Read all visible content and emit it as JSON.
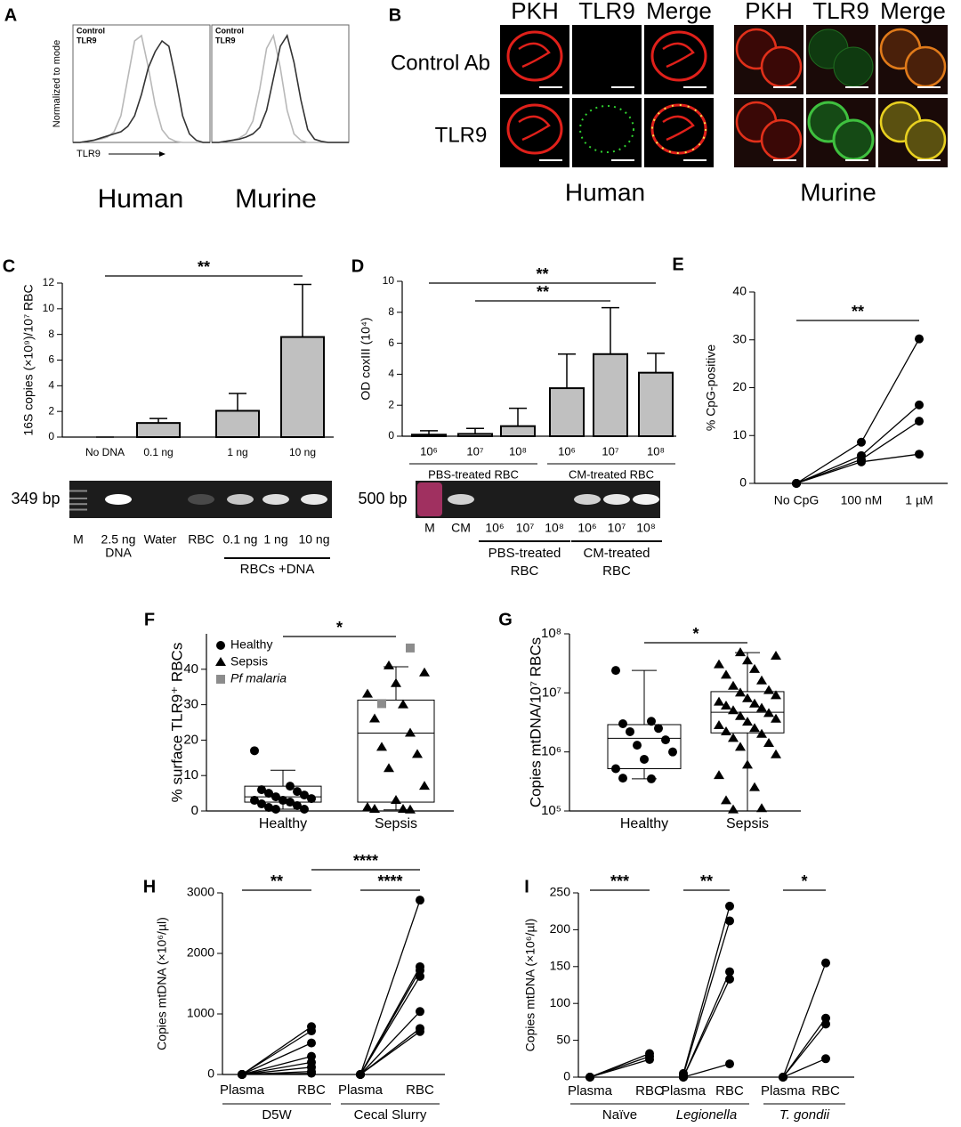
{
  "chart_data": [
    {
      "type": "line",
      "label": "A",
      "title": "Human",
      "ylabel": "Normalized to mode",
      "xlabel": "TLR9",
      "x": [
        0,
        1,
        2,
        3,
        4,
        5,
        6,
        7,
        8,
        9,
        10,
        11,
        12,
        13,
        14,
        15,
        16,
        17,
        18,
        19,
        20
      ],
      "xlim": [
        0,
        20
      ],
      "ylim": [
        0,
        110
      ],
      "series": [
        {
          "name": "Control",
          "color": "#b8b8b8",
          "values": [
            0,
            0,
            1,
            2,
            3,
            5,
            10,
            25,
            60,
            95,
            100,
            70,
            35,
            12,
            4,
            1,
            0,
            0,
            0,
            0,
            0
          ]
        },
        {
          "name": "TLR9",
          "color": "#333333",
          "values": [
            0,
            0,
            1,
            2,
            4,
            6,
            8,
            10,
            15,
            25,
            45,
            70,
            85,
            95,
            90,
            60,
            25,
            8,
            2,
            0,
            0
          ]
        }
      ]
    },
    {
      "type": "line",
      "title": "Murine",
      "x": [
        0,
        1,
        2,
        3,
        4,
        5,
        6,
        7,
        8,
        9,
        10,
        11,
        12,
        13,
        14,
        15,
        16,
        17,
        18,
        19,
        20
      ],
      "xlim": [
        0,
        20
      ],
      "ylim": [
        0,
        110
      ],
      "series": [
        {
          "name": "Control",
          "color": "#b8b8b8",
          "values": [
            0,
            0,
            1,
            2,
            4,
            8,
            20,
            50,
            88,
            100,
            70,
            30,
            8,
            2,
            0,
            0,
            0,
            0,
            0,
            0,
            0
          ]
        },
        {
          "name": "TLR9",
          "color": "#333333",
          "values": [
            0,
            0,
            1,
            2,
            3,
            5,
            8,
            14,
            30,
            60,
            90,
            100,
            75,
            40,
            12,
            3,
            1,
            0,
            0,
            0,
            0
          ]
        }
      ]
    },
    {
      "type": "image",
      "label": "B",
      "columns": [
        "PKH",
        "TLR9",
        "Merge"
      ],
      "rows": [
        "Control Ab",
        "TLR9"
      ],
      "titles": [
        "Human",
        "Murine"
      ]
    },
    {
      "type": "bar",
      "label": "C",
      "ylabel": "16S copies (×10⁹)/10⁷ RBC",
      "categories": [
        "No DNA",
        "0.1 ng",
        "1 ng",
        "10 ng"
      ],
      "values": [
        0,
        1.1,
        2.05,
        7.8
      ],
      "errors": [
        0,
        0.35,
        1.35,
        4.1
      ],
      "color": "#c0c0c0",
      "ylim": [
        0,
        12
      ],
      "yticks": [
        0,
        2,
        4,
        6,
        8,
        10,
        12
      ],
      "annotations": [
        {
          "text": "**",
          "from": 0,
          "to": 3
        }
      ]
    },
    {
      "type": "gel",
      "marker_label": "349 bp",
      "lanes": [
        "M",
        [
          "2.5 ng",
          "DNA"
        ],
        "Water",
        "RBC",
        "0.1 ng",
        "1 ng",
        "10 ng"
      ],
      "groups": [
        [
          "RBCs +DNA"
        ]
      ]
    },
    {
      "type": "bar",
      "label": "D",
      "ylabel": "OD coxIII (10⁴)",
      "categories": [
        "10⁶",
        "10⁷",
        "10⁸",
        "10⁶",
        "10⁷",
        "10⁸"
      ],
      "groups": [
        {
          "label": "PBS-treated RBC"
        },
        {
          "label": "CM-treated RBC"
        }
      ],
      "values": [
        0.1,
        0.15,
        0.65,
        3.1,
        5.3,
        4.1
      ],
      "errors": [
        0.25,
        0.35,
        1.15,
        2.2,
        3.0,
        1.25
      ],
      "color": "#c0c0c0",
      "ylim": [
        0,
        10
      ],
      "yticks": [
        0,
        2,
        4,
        6,
        8,
        10
      ],
      "annotations": [
        {
          "text": "**",
          "from": 0,
          "to": 5
        },
        {
          "text": "**",
          "from": 1,
          "to": 4
        }
      ]
    },
    {
      "type": "gel",
      "marker_label": "500 bp",
      "lanes": [
        "M",
        "CM",
        "10⁶",
        "10⁷",
        "10⁸",
        "10⁶",
        "10⁷",
        "10⁸"
      ],
      "groups": [
        [
          "PBS-treated",
          "RBC"
        ],
        [
          "CM-treated",
          "RBC"
        ]
      ]
    },
    {
      "type": "paired",
      "label": "E",
      "ylabel": "% CpG-positive",
      "categories": [
        "No CpG",
        "100 nM",
        "1 µM"
      ],
      "ylim": [
        0,
        40
      ],
      "yticks": [
        0,
        10,
        20,
        30,
        40
      ],
      "series": [
        {
          "values": [
            0,
            8.6,
            30.2
          ]
        },
        {
          "values": [
            0,
            5.8,
            16.4
          ]
        },
        {
          "values": [
            0,
            5.0,
            13.0
          ]
        },
        {
          "values": [
            0,
            4.5,
            6.1
          ]
        }
      ],
      "annotations": [
        {
          "text": "**",
          "from": 0,
          "to": 2
        }
      ]
    },
    {
      "type": "box",
      "label": "F",
      "ylabel": "% surface TLR9⁺ RBCs",
      "categories": [
        "Healthy",
        "Sepsis"
      ],
      "ylim": [
        0,
        50
      ],
      "yticks": [
        0,
        10,
        20,
        30,
        40
      ],
      "legend": "top-left",
      "boxes": [
        {
          "min": 0.5,
          "q1": 2.5,
          "median": 4,
          "q3": 7,
          "max": 11.5
        },
        {
          "min": 0.3,
          "q1": 2.5,
          "median": 22,
          "q3": 31.3,
          "max": 40.7
        }
      ],
      "series": [
        {
          "name": "Healthy",
          "marker": "circle",
          "category": 0,
          "color": "#000000",
          "values": [
            17,
            7,
            6,
            5.5,
            5,
            4.5,
            4,
            3.5,
            3,
            3,
            2.5,
            2,
            1.5,
            1,
            0.5,
            0.5
          ]
        },
        {
          "name": "Sepsis",
          "marker": "triangle",
          "category": 1,
          "color": "#000000",
          "values": [
            41,
            39,
            36,
            33,
            30,
            26,
            22,
            18,
            16,
            12,
            7,
            3,
            1,
            0.5,
            0.5,
            0.3
          ]
        },
        {
          "name": "Pf malaria",
          "marker": "square",
          "category": 1,
          "color": "#8c8c8c",
          "italic": true,
          "values": [
            46,
            30.3
          ]
        }
      ],
      "annotations": [
        {
          "text": "*",
          "from": 0,
          "to": 1
        }
      ]
    },
    {
      "type": "box",
      "label": "G",
      "ylabel": "Copies mtDNA/10⁷ RBCs",
      "categories": [
        "Healthy",
        "Sepsis"
      ],
      "log": true,
      "ylim": [
        100000,
        100000000
      ],
      "yticks": [
        {
          "value": 100000,
          "label": "10⁵"
        },
        {
          "value": 1000000,
          "label": "10⁶"
        },
        {
          "value": 10000000,
          "label": "10⁷"
        },
        {
          "value": 100000000,
          "label": "10⁸"
        }
      ],
      "boxes": [
        {
          "min": 350000,
          "q1": 520000,
          "median": 1700000,
          "q3": 2900000,
          "max": 24000000
        },
        {
          "min": 100000,
          "q1": 2100000,
          "median": 4700000,
          "q3": 10500000,
          "max": 48000000
        }
      ],
      "series": [
        {
          "marker": "circle",
          "category": 0,
          "color": "#000000",
          "values": [
            24000000,
            3300000,
            3000000,
            2500000,
            2200000,
            1600000,
            1300000,
            1000000,
            750000,
            520000,
            350000,
            360000
          ]
        },
        {
          "marker": "triangle",
          "category": 1,
          "color": "#000000",
          "values": [
            48000000,
            42000000,
            35000000,
            30000000,
            25000000,
            20000000,
            16000000,
            13000000,
            11000000,
            10000000,
            9000000,
            8000000,
            7000000,
            6500000,
            6000000,
            5500000,
            5000000,
            4500000,
            4000000,
            3600000,
            3200000,
            2800000,
            2500000,
            2200000,
            2000000,
            1700000,
            1400000,
            1200000,
            900000,
            600000,
            400000,
            250000,
            150000,
            110000,
            105000
          ]
        }
      ],
      "annotations": [
        {
          "text": "*",
          "from": 0,
          "to": 1
        }
      ]
    },
    {
      "type": "paired",
      "label": "H",
      "ylabel": "Copies mtDNA (×10⁶/µl)",
      "categories": [
        "Plasma",
        "RBC",
        "Plasma",
        "RBC"
      ],
      "groups": [
        {
          "label": "D5W"
        },
        {
          "label": "Cecal Slurry"
        }
      ],
      "ylim": [
        0,
        3000
      ],
      "yticks": [
        0,
        1000,
        2000,
        3000
      ],
      "series": [
        {
          "values": [
            0,
            790,
            null,
            null
          ]
        },
        {
          "values": [
            0,
            720,
            null,
            null
          ]
        },
        {
          "values": [
            0,
            520,
            null,
            null
          ]
        },
        {
          "values": [
            0,
            300,
            null,
            null
          ]
        },
        {
          "values": [
            0,
            200,
            null,
            null
          ]
        },
        {
          "values": [
            0,
            120,
            null,
            null
          ]
        },
        {
          "values": [
            0,
            50,
            null,
            null
          ]
        },
        {
          "values": [
            0,
            20,
            null,
            null
          ]
        },
        {
          "values": [
            null,
            null,
            0,
            2880
          ]
        },
        {
          "values": [
            null,
            null,
            0,
            1780
          ]
        },
        {
          "values": [
            null,
            null,
            0,
            1720
          ]
        },
        {
          "values": [
            null,
            null,
            0,
            1620
          ]
        },
        {
          "values": [
            null,
            null,
            0,
            1040
          ]
        },
        {
          "values": [
            null,
            null,
            0,
            760
          ]
        },
        {
          "values": [
            null,
            null,
            0,
            710
          ]
        }
      ],
      "annotations": [
        {
          "text": "**",
          "from": 0,
          "to": 1
        },
        {
          "text": "****",
          "from": 1,
          "to": 3
        },
        {
          "text": "****",
          "from": 2,
          "to": 3
        }
      ]
    },
    {
      "type": "paired",
      "label": "I",
      "ylabel": "Copies mtDNA (×10⁶/µl)",
      "categories": [
        "Plasma",
        "RBC",
        "Plasma",
        "RBC",
        "Plasma",
        "RBC"
      ],
      "groups": [
        {
          "label": "Naïve"
        },
        {
          "label": "Legionella",
          "italic": true
        },
        {
          "label": "T. gondii",
          "italic": true
        }
      ],
      "ylim": [
        0,
        250
      ],
      "yticks": [
        0,
        50,
        100,
        150,
        200,
        250
      ],
      "series": [
        {
          "values": [
            0,
            32,
            null,
            null,
            null,
            null
          ]
        },
        {
          "values": [
            0,
            28,
            null,
            null,
            null,
            null
          ]
        },
        {
          "values": [
            0,
            24,
            null,
            null,
            null,
            null
          ]
        },
        {
          "values": [
            null,
            null,
            5,
            232,
            null,
            null
          ]
        },
        {
          "values": [
            null,
            null,
            3,
            212,
            null,
            null
          ]
        },
        {
          "values": [
            null,
            null,
            0,
            143,
            null,
            null
          ]
        },
        {
          "values": [
            null,
            null,
            0,
            133,
            null,
            null
          ]
        },
        {
          "values": [
            null,
            null,
            0,
            18,
            null,
            null
          ]
        },
        {
          "values": [
            null,
            null,
            null,
            null,
            0,
            155
          ]
        },
        {
          "values": [
            null,
            null,
            null,
            null,
            0,
            80
          ]
        },
        {
          "values": [
            null,
            null,
            null,
            null,
            0,
            72
          ]
        },
        {
          "values": [
            null,
            null,
            null,
            null,
            0,
            25
          ]
        }
      ],
      "annotations": [
        {
          "text": "***",
          "from": 0,
          "to": 1
        },
        {
          "text": "**",
          "from": 2,
          "to": 3
        },
        {
          "text": "*",
          "from": 4,
          "to": 5
        }
      ]
    }
  ]
}
